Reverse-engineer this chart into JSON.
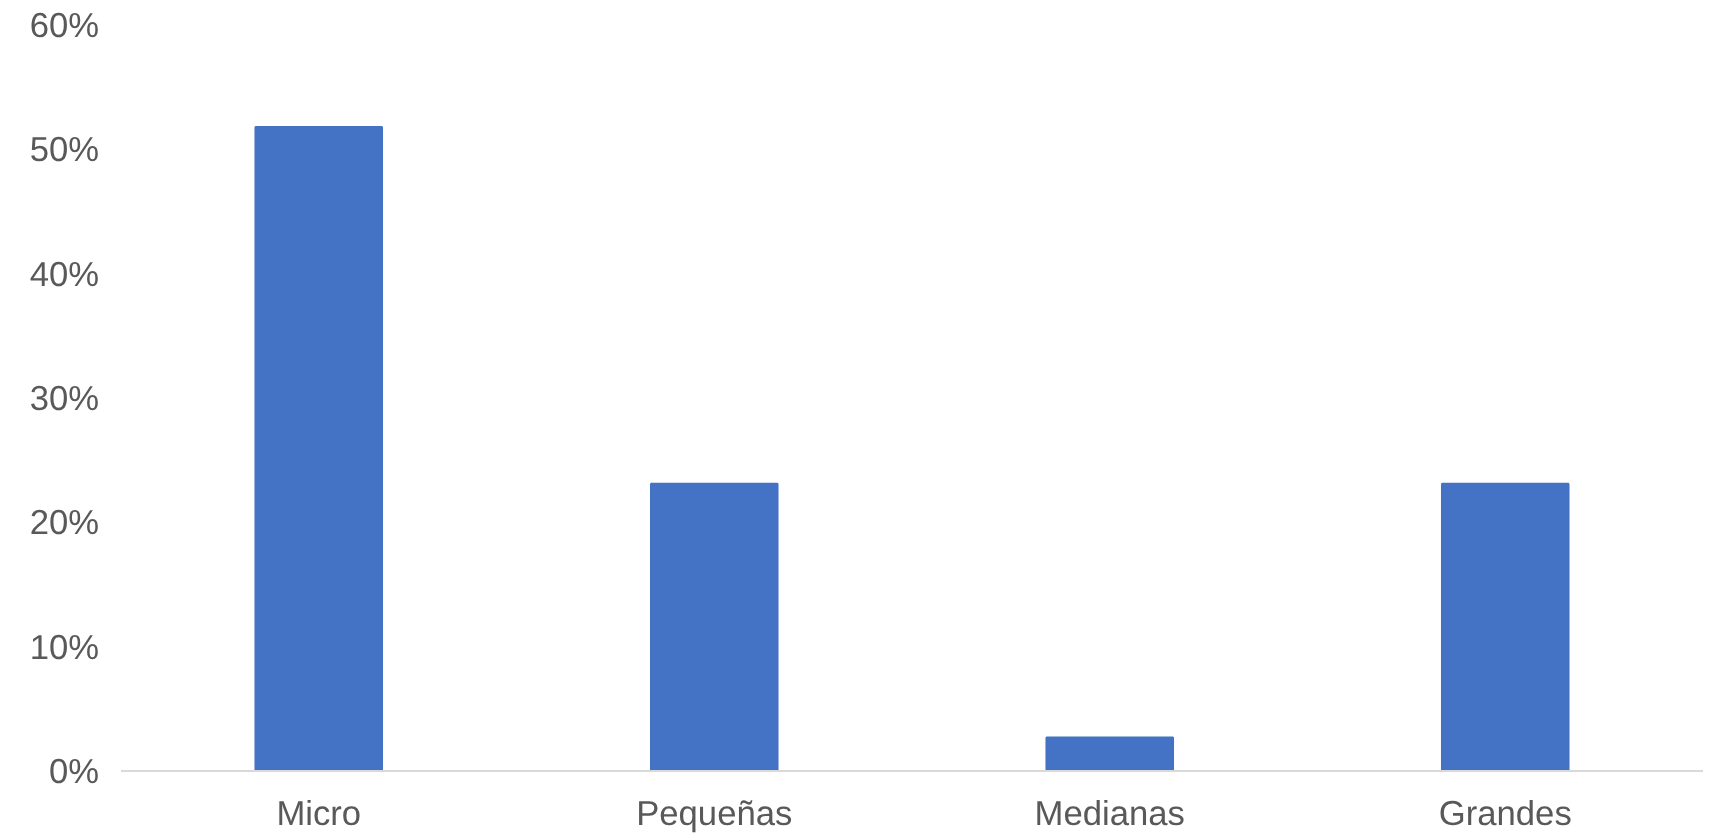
{
  "chart_data": {
    "type": "bar",
    "categories": [
      "Micro",
      "Pequeñas",
      "Medianas",
      "Grandes"
    ],
    "values": [
      51.8,
      23.1,
      2.7,
      23.1
    ],
    "color": "#4472c4",
    "ylim": [
      0,
      60
    ],
    "yticks": [
      {
        "value": 0,
        "label": "0%"
      },
      {
        "value": 10,
        "label": "10%"
      },
      {
        "value": 20,
        "label": "20%"
      },
      {
        "value": 30,
        "label": "30%"
      },
      {
        "value": 40,
        "label": "40%"
      },
      {
        "value": 50,
        "label": "50%"
      },
      {
        "value": 60,
        "label": "60%"
      }
    ],
    "grid": false
  }
}
